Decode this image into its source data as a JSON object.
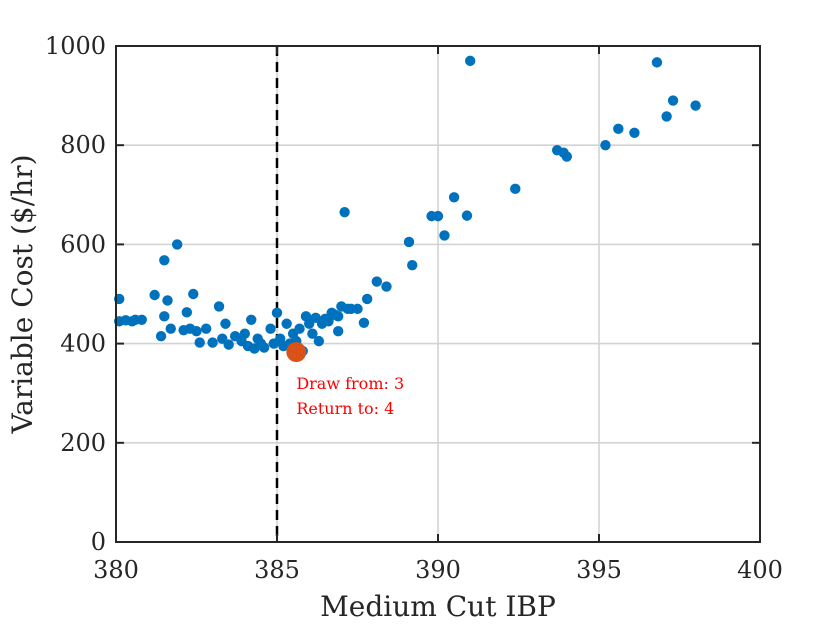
{
  "chart_data": {
    "type": "scatter",
    "xlabel": "Medium Cut IBP",
    "ylabel": "Variable Cost ($/hr)",
    "xlim": [
      380,
      400
    ],
    "ylim": [
      0,
      1000
    ],
    "xticks": [
      "380",
      "385",
      "390",
      "395",
      "400"
    ],
    "yticks": [
      "0",
      "200",
      "400",
      "600",
      "800",
      "1000"
    ],
    "grid": true,
    "vline_x": 385,
    "series": [
      {
        "color": "#0072BD",
        "points": [
          [
            380.1,
            490
          ],
          [
            380.1,
            445
          ],
          [
            380.3,
            447
          ],
          [
            380.5,
            445
          ],
          [
            380.6,
            448
          ],
          [
            380.8,
            448
          ],
          [
            381.2,
            498
          ],
          [
            381.5,
            568
          ],
          [
            381.6,
            487
          ],
          [
            381.9,
            600
          ],
          [
            381.5,
            455
          ],
          [
            381.4,
            415
          ],
          [
            381.7,
            430
          ],
          [
            382.2,
            463
          ],
          [
            382.4,
            500
          ],
          [
            382.1,
            427
          ],
          [
            382.3,
            430
          ],
          [
            382.5,
            425
          ],
          [
            382.8,
            430
          ],
          [
            382.6,
            402
          ],
          [
            383.0,
            402
          ],
          [
            383.2,
            475
          ],
          [
            383.3,
            410
          ],
          [
            383.4,
            440
          ],
          [
            383.5,
            398
          ],
          [
            383.7,
            415
          ],
          [
            383.9,
            405
          ],
          [
            384.0,
            420
          ],
          [
            384.2,
            448
          ],
          [
            384.1,
            395
          ],
          [
            384.3,
            390
          ],
          [
            384.4,
            410
          ],
          [
            384.5,
            400
          ],
          [
            384.6,
            392
          ],
          [
            384.8,
            430
          ],
          [
            384.9,
            400
          ],
          [
            385.0,
            462
          ],
          [
            385.1,
            410
          ],
          [
            385.2,
            395
          ],
          [
            385.3,
            440
          ],
          [
            385.4,
            400
          ],
          [
            385.5,
            420
          ],
          [
            385.6,
            405
          ],
          [
            385.7,
            430
          ],
          [
            385.8,
            385
          ],
          [
            385.9,
            455
          ],
          [
            386.0,
            440
          ],
          [
            386.1,
            420
          ],
          [
            386.2,
            452
          ],
          [
            386.3,
            405
          ],
          [
            386.4,
            440
          ],
          [
            386.5,
            450
          ],
          [
            386.6,
            445
          ],
          [
            386.7,
            462
          ],
          [
            386.8,
            458
          ],
          [
            386.9,
            455
          ],
          [
            387.0,
            475
          ],
          [
            387.1,
            665
          ],
          [
            387.2,
            470
          ],
          [
            387.3,
            470
          ],
          [
            387.5,
            470
          ],
          [
            387.8,
            490
          ],
          [
            387.7,
            442
          ],
          [
            386.9,
            425
          ],
          [
            388.1,
            525
          ],
          [
            388.4,
            515
          ],
          [
            389.1,
            605
          ],
          [
            389.2,
            558
          ],
          [
            389.8,
            657
          ],
          [
            390.0,
            657
          ],
          [
            390.2,
            618
          ],
          [
            390.5,
            695
          ],
          [
            390.9,
            658
          ],
          [
            391.0,
            970
          ],
          [
            392.4,
            712
          ],
          [
            393.7,
            790
          ],
          [
            393.9,
            785
          ],
          [
            394.0,
            777
          ],
          [
            395.2,
            800
          ],
          [
            395.6,
            833
          ],
          [
            396.1,
            825
          ],
          [
            396.8,
            967
          ],
          [
            397.1,
            858
          ],
          [
            397.3,
            890
          ],
          [
            398.0,
            880
          ]
        ]
      }
    ],
    "highlight": {
      "point": [
        385.6,
        383
      ],
      "color": "#D95319"
    },
    "annotation": {
      "lines": [
        "Draw from: 3",
        "Return to: 4"
      ],
      "color": "#FF0000"
    }
  }
}
